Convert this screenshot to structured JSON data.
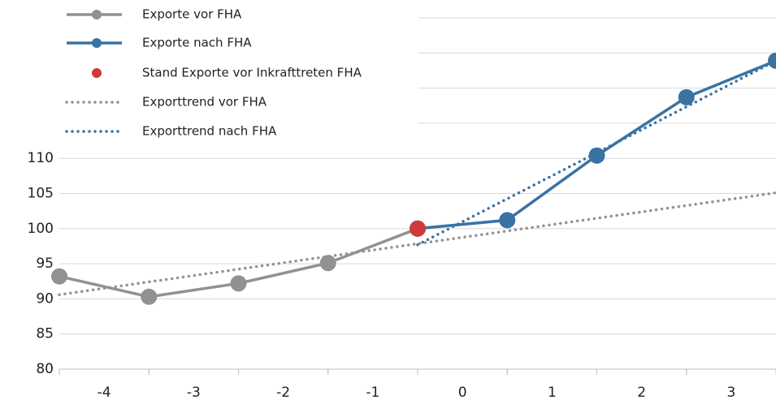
{
  "chart_data": {
    "type": "line",
    "xlim": [
      -4.5,
      3.5
    ],
    "xticks": [
      -4,
      -3,
      -2,
      -1,
      0,
      1,
      2,
      3
    ],
    "ylim": [
      80,
      130
    ],
    "yticks": [
      80,
      85,
      90,
      95,
      100,
      105,
      110,
      115,
      120,
      125,
      130
    ],
    "grid": true,
    "legend": "top-left",
    "series": [
      {
        "name": "Exporte vor FHA",
        "color": "#919191",
        "style": "solid",
        "marker": true,
        "x": [
          -4.5,
          -3.5,
          -2.5,
          -1.5,
          -0.5
        ],
        "values": [
          93.2,
          90.3,
          92.2,
          95.1,
          100
        ]
      },
      {
        "name": "Exporte nach FHA",
        "color": "#3a72a3",
        "style": "solid",
        "marker": true,
        "x": [
          -0.5,
          0.5,
          1.5,
          2.5,
          3.5
        ],
        "values": [
          100,
          101.2,
          110.4,
          118.7,
          123.9
        ]
      },
      {
        "name": "Stand Exporte vor Inkrafttreten FHA",
        "color": "#d03a3a",
        "style": "none",
        "marker": true,
        "x": [
          -0.5
        ],
        "values": [
          100
        ]
      },
      {
        "name": "Exporttrend vor FHA",
        "color": "#919191",
        "style": "dotted",
        "marker": false,
        "x": [
          -4.5,
          3.5
        ],
        "values": [
          90.6,
          105.1
        ]
      },
      {
        "name": "Exporttrend nach FHA",
        "color": "#3a72a3",
        "style": "dotted",
        "marker": false,
        "x": [
          -0.5,
          3.5
        ],
        "values": [
          97.7,
          123.9
        ]
      }
    ]
  }
}
